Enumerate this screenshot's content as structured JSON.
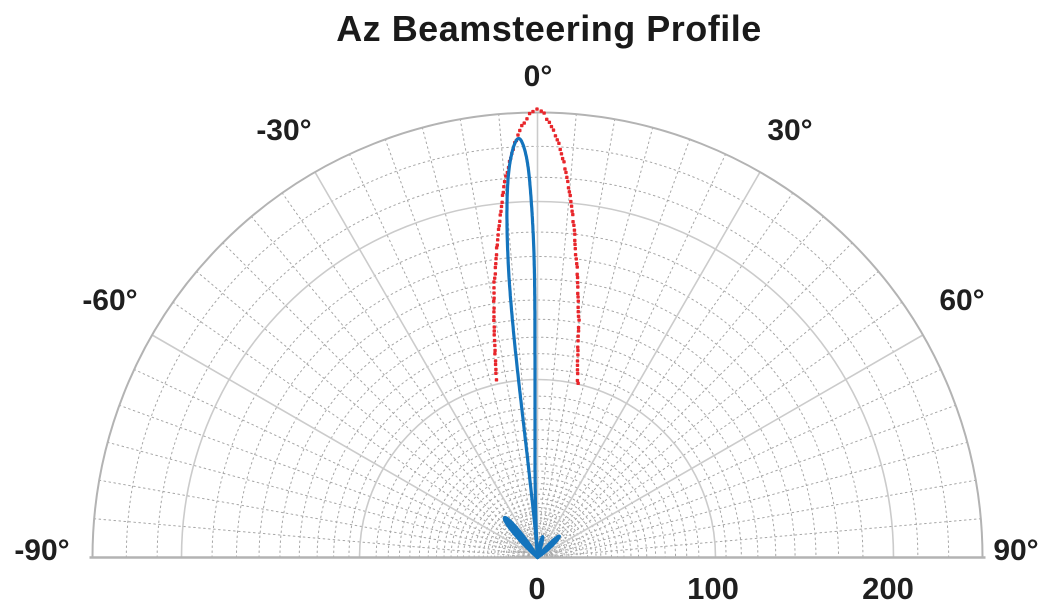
{
  "title": "Az Beamsteering Profile",
  "polar": {
    "angle_labels": [
      {
        "deg": -90,
        "label": "-90°"
      },
      {
        "deg": -60,
        "label": "-60°"
      },
      {
        "deg": -30,
        "label": "-30°"
      },
      {
        "deg": 0,
        "label": "0°"
      },
      {
        "deg": 30,
        "label": "30°"
      },
      {
        "deg": 60,
        "label": "60°"
      },
      {
        "deg": 90,
        "label": "90°"
      }
    ],
    "r_tick_labels": [
      {
        "value": 0,
        "label": "0"
      },
      {
        "value": 100,
        "label": "100"
      },
      {
        "value": 200,
        "label": "200"
      }
    ]
  },
  "chart_data": {
    "type": "line",
    "coordinate_system": "polar-half-top",
    "title": "Az Beamsteering Profile",
    "angle_unit": "degrees",
    "angle_range": [
      -90,
      90
    ],
    "rmax": 250,
    "r_ticks": [
      0,
      100,
      200
    ],
    "angle_ticks_labeled": [
      -90,
      -60,
      -30,
      0,
      30,
      60,
      90
    ],
    "grid": {
      "major_rings": [
        100,
        200
      ],
      "minor_rings_geometric": {
        "start_value": 231,
        "ratio": 0.925,
        "min_value": 3.5
      },
      "major_angle_step_deg": 30,
      "minor_angle_step_deg": 5,
      "major_color": "#cbcbcb",
      "minor_color": "#a6a6a6",
      "boundary_color": "#b3b3b3"
    },
    "series": [
      {
        "name": "measured-pattern-red-dotted",
        "style": "dot-markers",
        "color": "#e8262b",
        "marker_size": 3.4,
        "marker_spacing_px": 4.6,
        "marker_jitter": 1.4,
        "points": [
          [
            -13,
            103
          ],
          [
            -12.5,
            108
          ],
          [
            -12,
            114
          ],
          [
            -11.5,
            120
          ],
          [
            -11,
            127
          ],
          [
            -10.5,
            134
          ],
          [
            -10,
            141
          ],
          [
            -9.5,
            148
          ],
          [
            -9,
            156
          ],
          [
            -8.5,
            161
          ],
          [
            -8,
            168
          ],
          [
            -7.5,
            175
          ],
          [
            -7,
            182
          ],
          [
            -6.5,
            189
          ],
          [
            -6,
            196
          ],
          [
            -5.5,
            204
          ],
          [
            -5,
            212
          ],
          [
            -4.5,
            217
          ],
          [
            -4,
            223
          ],
          [
            -3.5,
            229
          ],
          [
            -3,
            234
          ],
          [
            -2.5,
            239
          ],
          [
            -2,
            243
          ],
          [
            -1.5,
            246
          ],
          [
            -1,
            249
          ],
          [
            -0.5,
            251
          ],
          [
            0,
            252
          ],
          [
            0.5,
            251
          ],
          [
            1,
            248
          ],
          [
            1.5,
            245
          ],
          [
            2,
            241
          ],
          [
            2.5,
            237
          ],
          [
            3,
            232
          ],
          [
            3.5,
            226
          ],
          [
            4,
            220
          ],
          [
            4.5,
            213
          ],
          [
            5,
            206
          ],
          [
            5.5,
            199
          ],
          [
            6,
            191
          ],
          [
            6.5,
            184
          ],
          [
            7,
            174
          ],
          [
            7.5,
            168
          ],
          [
            8,
            161
          ],
          [
            8.5,
            153
          ],
          [
            9,
            146
          ],
          [
            9.5,
            139
          ],
          [
            10,
            134
          ],
          [
            10.5,
            125
          ],
          [
            11,
            119
          ],
          [
            11.5,
            113
          ],
          [
            12,
            108
          ],
          [
            12.5,
            104
          ],
          [
            13,
            101
          ],
          [
            13.5,
            98
          ]
        ]
      },
      {
        "name": "steered-beam-blue-solid",
        "style": "solid-line",
        "color": "#1474bd",
        "line_width": 3.2,
        "main_lobe": [
          [
            -4,
            0
          ],
          [
            -5.3,
            30
          ],
          [
            -5.9,
            70
          ],
          [
            -6.1,
            110
          ],
          [
            -5.9,
            150
          ],
          [
            -5.3,
            185
          ],
          [
            -4.5,
            212
          ],
          [
            -3.6,
            228
          ],
          [
            -2.7,
            235.5
          ],
          [
            -2.0,
            232
          ],
          [
            -1.4,
            220
          ],
          [
            -1.0,
            200
          ],
          [
            -0.7,
            175
          ],
          [
            -0.6,
            148
          ],
          [
            -0.7,
            118
          ],
          [
            -0.9,
            88
          ],
          [
            -1.4,
            58
          ],
          [
            -2.1,
            32
          ],
          [
            -2.8,
            12
          ],
          [
            -3.2,
            0
          ]
        ],
        "sidelobes": [
          [
            [
              -28,
              0
            ],
            [
              -33,
              13
            ],
            [
              -37,
              26
            ],
            [
              -40,
              29
            ],
            [
              -43,
              24
            ],
            [
              -46,
              12
            ],
            [
              -49,
              0
            ]
          ],
          [
            [
              36,
              0
            ],
            [
              41,
              10
            ],
            [
              45,
              17
            ],
            [
              49,
              14
            ],
            [
              53,
              6
            ],
            [
              56,
              0
            ]
          ],
          [
            [
              7,
              0
            ],
            [
              11,
              9
            ],
            [
              14,
              12
            ],
            [
              17,
              8
            ],
            [
              20,
              0
            ]
          ]
        ]
      }
    ]
  }
}
